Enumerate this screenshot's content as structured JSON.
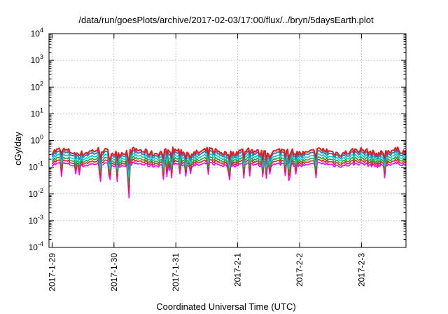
{
  "chart_data": {
    "type": "line",
    "title": "/data/run/goesPlots/archive/2017-02-03/17:00/flux/../bryn/5daysEarth.plot",
    "xlabel": "Coordinated Universal Time (UTC)",
    "ylabel": "cGy/day",
    "y_scale": "log",
    "ylim": [
      0.0001,
      10000
    ],
    "y_ticks": [
      {
        "base": "10",
        "exp": "4"
      },
      {
        "base": "10",
        "exp": "3"
      },
      {
        "base": "10",
        "exp": "2"
      },
      {
        "base": "10",
        "exp": "1"
      },
      {
        "base": "10",
        "exp": "0"
      },
      {
        "base": "10",
        "exp": "-1"
      },
      {
        "base": "10",
        "exp": "-2"
      },
      {
        "base": "10",
        "exp": "-3"
      },
      {
        "base": "10",
        "exp": "-4"
      }
    ],
    "x_ticks": [
      "2017-1-29",
      "2017-1-30",
      "2017-1-31",
      "2017-2-1",
      "2017-2-2",
      "2017-2-3"
    ],
    "xlim_days": [
      -0.05,
      5.72
    ],
    "grid": true,
    "series": [
      {
        "color": "#e41a1c",
        "level": 0.38
      },
      {
        "color": "#377eb8",
        "level": 0.31
      },
      {
        "color": "#00d0d0",
        "level": 0.24
      },
      {
        "color": "#2ca02c",
        "level": 0.19
      },
      {
        "color": "#e02020",
        "level": 0.155
      },
      {
        "color": "#ff00ff",
        "level": 0.125
      }
    ]
  }
}
